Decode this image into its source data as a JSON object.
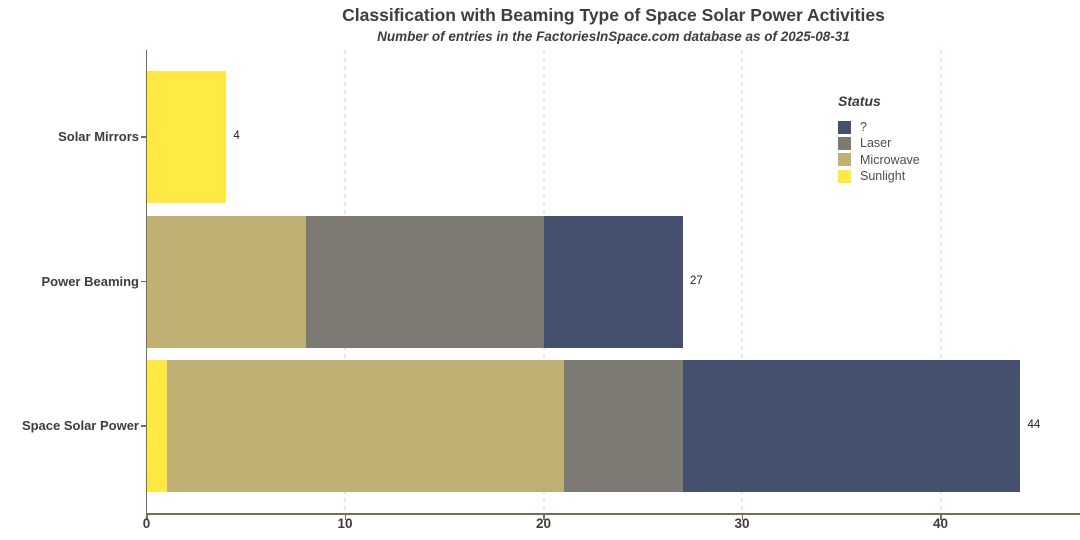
{
  "title": "Classification with Beaming Type of Space Solar Power Activities",
  "subtitle": "Number of entries in the FactoriesInSpace.com database as of 2025-08-31",
  "legend": {
    "title": "Status",
    "position": "right",
    "items": [
      {
        "label": "?",
        "color": "#44506e"
      },
      {
        "label": "Laser",
        "color": "#7d7a74"
      },
      {
        "label": "Microwave",
        "color": "#bfb173"
      },
      {
        "label": "Sunlight",
        "color": "#ffe942"
      }
    ]
  },
  "axis_style": {
    "axis_line_color": "#7d6a58",
    "gridline_color": "#efe6d5",
    "tick_label_color": "#3d3d3d",
    "value_label_color": "#1c1c1c"
  },
  "chart_data": {
    "type": "bar",
    "orientation": "horizontal",
    "stacked": true,
    "title": "Classification with Beaming Type of Space Solar Power Activities",
    "subtitle": "Number of entries in the FactoriesInSpace.com database as of 2025-08-31",
    "xlabel": "",
    "ylabel": "",
    "xlim": [
      0,
      47
    ],
    "x_ticks": [
      0,
      10,
      20,
      30,
      40
    ],
    "grid": "vertical-dashed-major-only",
    "legend_position": "right",
    "legend_title": "Status",
    "status_colors": {
      "?": "#44506e",
      "Laser": "#7d7a74",
      "Microwave": "#bfb173",
      "Sunlight": "#ffe942"
    },
    "categories": [
      "Solar Mirrors",
      "Power Beaming",
      "Space Solar Power"
    ],
    "bars": [
      {
        "category": "Solar Mirrors",
        "total": 4,
        "segments": [
          {
            "status": "Sunlight",
            "value": 4
          }
        ]
      },
      {
        "category": "Power Beaming",
        "total": 27,
        "segments": [
          {
            "status": "Microwave",
            "value": 8
          },
          {
            "status": "Laser",
            "value": 12
          },
          {
            "status": "?",
            "value": 7
          }
        ]
      },
      {
        "category": "Space Solar Power",
        "total": 44,
        "segments": [
          {
            "status": "Sunlight",
            "value": 1
          },
          {
            "status": "Microwave",
            "value": 20
          },
          {
            "status": "Laser",
            "value": 6
          },
          {
            "status": "?",
            "value": 17
          }
        ]
      }
    ]
  }
}
